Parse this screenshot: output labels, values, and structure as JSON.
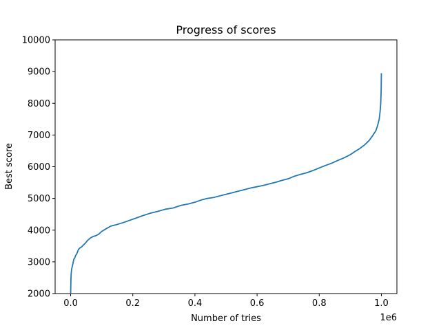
{
  "chart_data": {
    "type": "line",
    "title": "Progress of scores",
    "xlabel": "Number of tries",
    "ylabel": "Best score",
    "x_offset_label": "1e6",
    "xlim": [
      -50000,
      1050000
    ],
    "ylim": [
      2000,
      10000
    ],
    "x_ticks": [
      0,
      200000,
      400000,
      600000,
      800000,
      1000000
    ],
    "x_tick_labels": [
      "0.0",
      "0.2",
      "0.4",
      "0.6",
      "0.8",
      "1.0"
    ],
    "y_ticks": [
      2000,
      3000,
      4000,
      5000,
      6000,
      7000,
      8000,
      9000,
      10000
    ],
    "y_tick_labels": [
      "2000",
      "3000",
      "4000",
      "5000",
      "6000",
      "7000",
      "8000",
      "9000",
      "10000"
    ],
    "grid": false,
    "legend": "none",
    "series": [
      {
        "color": "#1f77b4",
        "x": [
          0,
          800,
          1500,
          3000,
          5000,
          7500,
          10000,
          13000,
          16000,
          20000,
          25000,
          30000,
          35000,
          40000,
          48000,
          55000,
          63000,
          72000,
          80000,
          90000,
          100000,
          115000,
          130000,
          150000,
          170000,
          190000,
          210000,
          230000,
          255000,
          280000,
          305000,
          330000,
          355000,
          380000,
          400000,
          420000,
          440000,
          460000,
          480000,
          500000,
          520000,
          540000,
          560000,
          580000,
          600000,
          620000,
          640000,
          660000,
          680000,
          700000,
          720000,
          740000,
          760000,
          780000,
          800000,
          820000,
          840000,
          860000,
          880000,
          900000,
          915000,
          930000,
          945000,
          960000,
          972000,
          982000,
          988000,
          993000,
          996000,
          998000,
          999300,
          1000000
        ],
        "y": [
          2020,
          2400,
          2600,
          2760,
          2850,
          2950,
          3080,
          3120,
          3200,
          3260,
          3390,
          3440,
          3470,
          3520,
          3600,
          3680,
          3750,
          3800,
          3820,
          3870,
          3960,
          4050,
          4130,
          4180,
          4240,
          4310,
          4380,
          4450,
          4530,
          4590,
          4660,
          4700,
          4780,
          4830,
          4880,
          4950,
          5000,
          5030,
          5080,
          5130,
          5180,
          5230,
          5280,
          5330,
          5370,
          5410,
          5460,
          5510,
          5570,
          5620,
          5700,
          5760,
          5810,
          5880,
          5960,
          6040,
          6110,
          6200,
          6280,
          6380,
          6480,
          6570,
          6680,
          6820,
          6980,
          7130,
          7300,
          7500,
          7740,
          8000,
          8400,
          8950
        ]
      }
    ]
  }
}
